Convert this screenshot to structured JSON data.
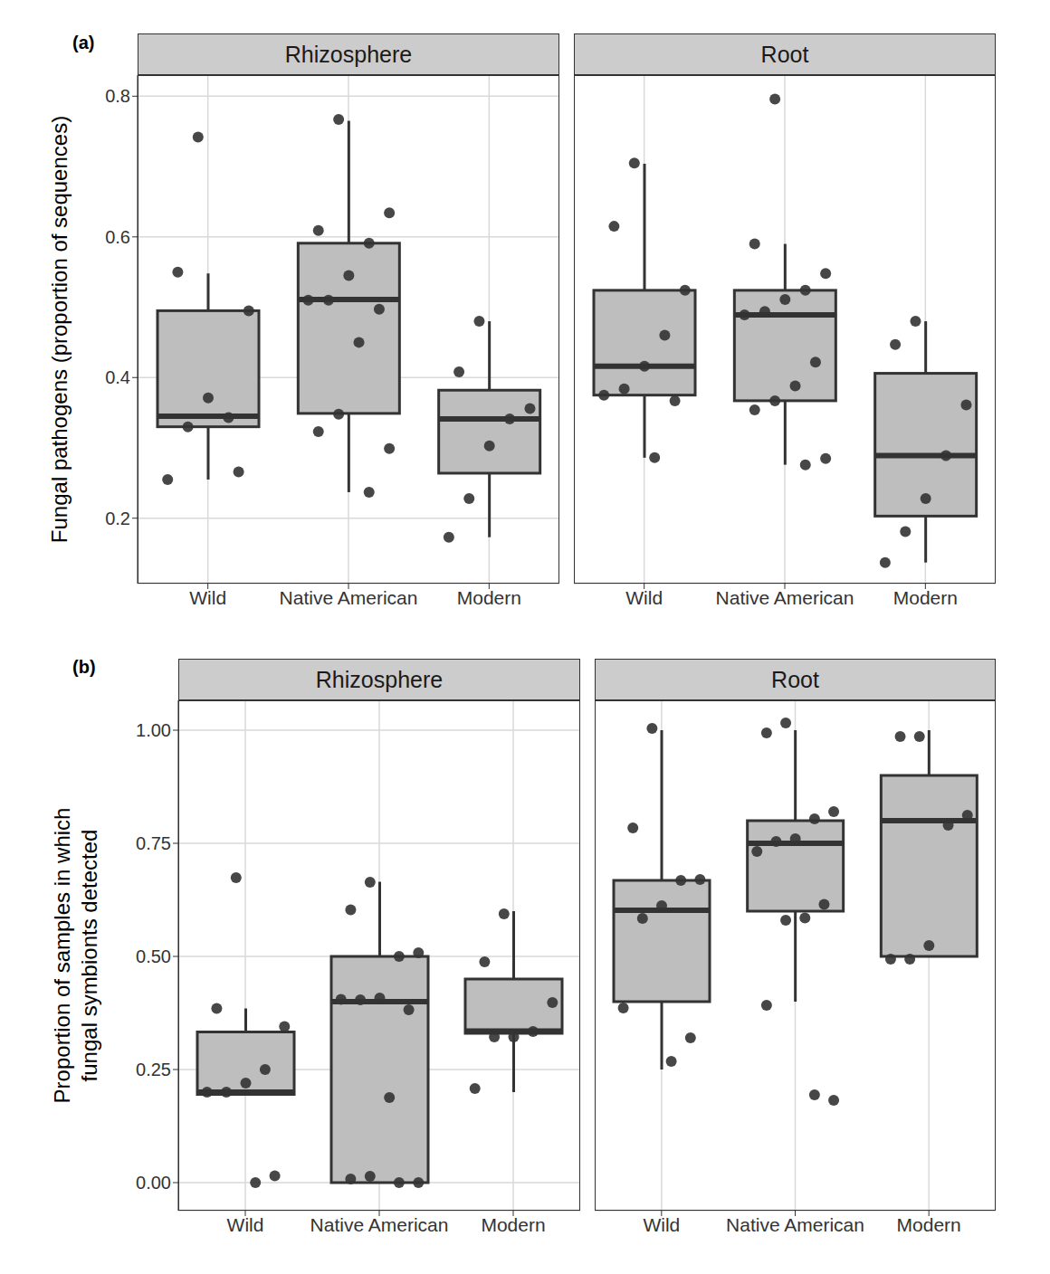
{
  "chart_data": [
    {
      "type": "box",
      "panel_label": "(a)",
      "title": "Rhizosphere",
      "ylabel": "Fungal pathogens (proportion of sequences)",
      "categories": [
        "Wild",
        "Native American",
        "Modern"
      ],
      "boxes": [
        {
          "whisker_low": 0.255,
          "q1": 0.33,
          "median": 0.345,
          "q3": 0.495,
          "whisker_high": 0.548
        },
        {
          "whisker_low": 0.237,
          "q1": 0.349,
          "median": 0.511,
          "q3": 0.591,
          "whisker_high": 0.765
        },
        {
          "whisker_low": 0.173,
          "q1": 0.264,
          "median": 0.341,
          "q3": 0.382,
          "whisker_high": 0.48
        }
      ],
      "points": [
        [
          0.742,
          0.55,
          0.495,
          0.343,
          0.371,
          0.33,
          0.255,
          0.266
        ],
        [
          0.767,
          0.609,
          0.634,
          0.591,
          0.545,
          0.51,
          0.51,
          0.497,
          0.45,
          0.348,
          0.323,
          0.299,
          0.237
        ],
        [
          0.48,
          0.408,
          0.356,
          0.341,
          0.303,
          0.228,
          0.173
        ]
      ],
      "ylim": [
        0.107,
        0.83
      ],
      "yticks": [
        0.2,
        0.4,
        0.6,
        0.8
      ],
      "grid": true,
      "color": "#bebebe"
    },
    {
      "type": "box",
      "title": "Root",
      "categories": [
        "Wild",
        "Native American",
        "Modern"
      ],
      "boxes": [
        {
          "whisker_low": 0.286,
          "q1": 0.375,
          "median": 0.416,
          "q3": 0.524,
          "whisker_high": 0.704
        },
        {
          "whisker_low": 0.276,
          "q1": 0.367,
          "median": 0.489,
          "q3": 0.524,
          "whisker_high": 0.59
        },
        {
          "whisker_low": 0.137,
          "q1": 0.203,
          "median": 0.289,
          "q3": 0.406,
          "whisker_high": 0.48
        }
      ],
      "points": [
        [
          0.705,
          0.615,
          0.524,
          0.46,
          0.416,
          0.384,
          0.375,
          0.367,
          0.286
        ],
        [
          0.796,
          0.59,
          0.548,
          0.524,
          0.511,
          0.494,
          0.489,
          0.422,
          0.388,
          0.367,
          0.354,
          0.285,
          0.276
        ],
        [
          0.48,
          0.447,
          0.361,
          0.289,
          0.228,
          0.181,
          0.137
        ]
      ],
      "ylim": [
        0.107,
        0.83
      ],
      "yticks": [
        0.2,
        0.4,
        0.6,
        0.8
      ],
      "grid": true,
      "color": "#bebebe",
      "tick_labels": "x"
    },
    {
      "type": "box",
      "panel_label": "(b)",
      "title": "Rhizosphere",
      "ylabel": "Proportion of samples in which\nfungal symbionts detected",
      "categories": [
        "Wild",
        "Native American",
        "Modern"
      ],
      "boxes": [
        {
          "whisker_low": 0.195,
          "q1": 0.195,
          "median": 0.2,
          "q3": 0.333,
          "whisker_high": 0.385
        },
        {
          "whisker_low": 0.0,
          "q1": 0.0,
          "median": 0.4,
          "q3": 0.5,
          "whisker_high": 0.665
        },
        {
          "whisker_low": 0.2,
          "q1": 0.33,
          "median": 0.335,
          "q3": 0.45,
          "whisker_high": 0.6
        }
      ],
      "points": [
        [
          0.674,
          0.385,
          0.345,
          0.25,
          0.22,
          0.2,
          0.2,
          0.015,
          0.0
        ],
        [
          0.664,
          0.603,
          0.508,
          0.5,
          0.408,
          0.404,
          0.405,
          0.382,
          0.188,
          0.014,
          0.008,
          0.0,
          0.0
        ],
        [
          0.594,
          0.488,
          0.398,
          0.334,
          0.322,
          0.322,
          0.208
        ]
      ],
      "ylim": [
        -0.062,
        1.066
      ],
      "yticks": [
        {
          "value": 0,
          "label": "0.00"
        },
        {
          "value": 0.25,
          "label": "0.25"
        },
        {
          "value": 0.5,
          "label": "0.50"
        },
        {
          "value": 0.75,
          "label": "0.75"
        },
        {
          "value": 1,
          "label": "1.00"
        }
      ],
      "grid": true,
      "color": "#bebebe"
    },
    {
      "type": "box",
      "title": "Root",
      "categories": [
        "Wild",
        "Native American",
        "Modern"
      ],
      "boxes": [
        {
          "whisker_low": 0.25,
          "q1": 0.4,
          "median": 0.602,
          "q3": 0.668,
          "whisker_high": 1.0
        },
        {
          "whisker_low": 0.4,
          "q1": 0.6,
          "median": 0.75,
          "q3": 0.8,
          "whisker_high": 1.0
        },
        {
          "whisker_low": 0.5,
          "q1": 0.5,
          "median": 0.8,
          "q3": 0.9,
          "whisker_high": 1.0
        }
      ],
      "points": [
        [
          1.004,
          0.784,
          0.67,
          0.668,
          0.612,
          0.584,
          0.386,
          0.32,
          0.268
        ],
        [
          1.016,
          0.994,
          0.82,
          0.804,
          0.76,
          0.754,
          0.732,
          0.615,
          0.585,
          0.58,
          0.392,
          0.182,
          0.194
        ],
        [
          0.986,
          0.986,
          0.812,
          0.79,
          0.524,
          0.494,
          0.494
        ]
      ],
      "ylim": [
        -0.062,
        1.066
      ],
      "yticks": [
        {
          "value": 0,
          "label": "0.00"
        },
        {
          "value": 0.25,
          "label": "0.25"
        },
        {
          "value": 0.5,
          "label": "0.50"
        },
        {
          "value": 0.75,
          "label": "0.75"
        },
        {
          "value": 1,
          "label": "1.00"
        }
      ],
      "grid": true,
      "color": "#bebebe",
      "tick_labels": "x"
    }
  ]
}
